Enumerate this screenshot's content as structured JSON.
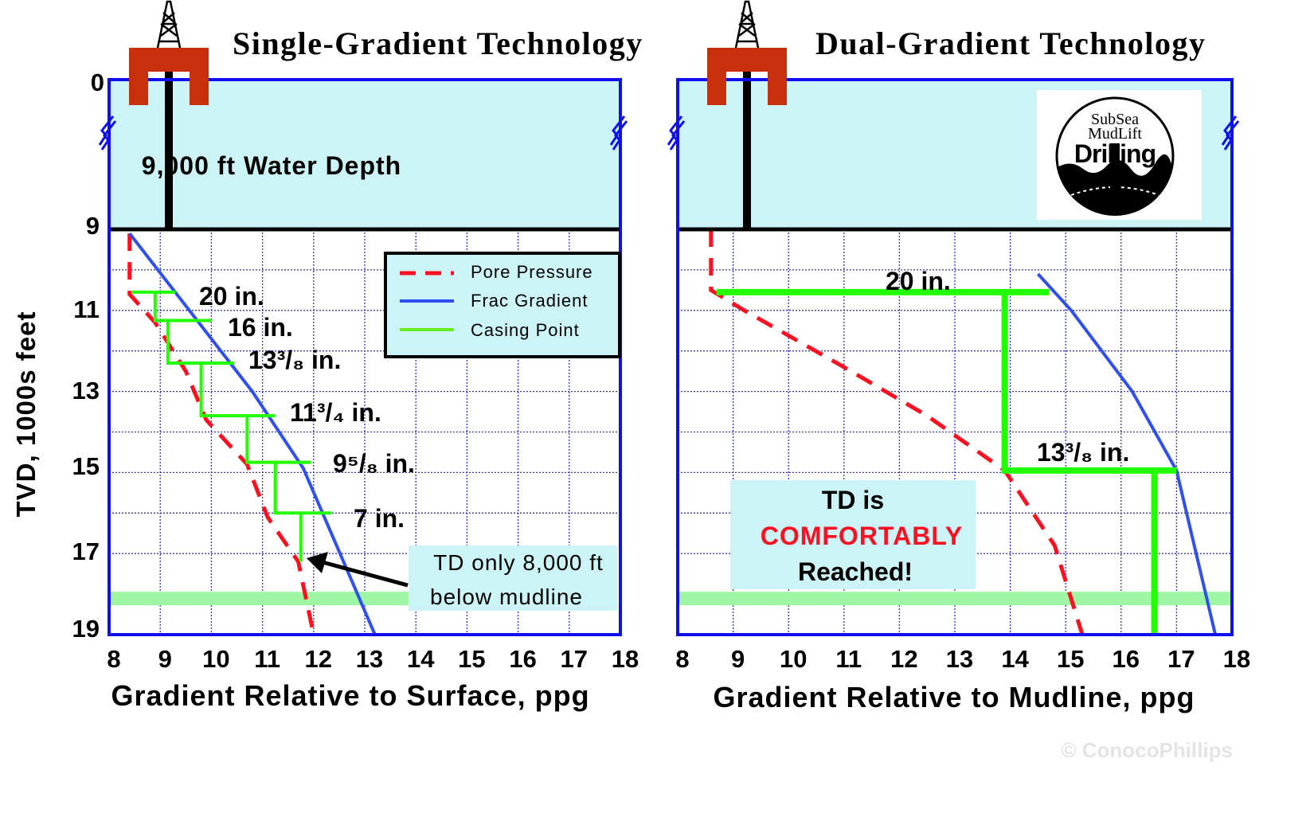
{
  "colors": {
    "water": "#ccf4f6",
    "frame": "#1010ee",
    "grid": "#3030ee",
    "pore": "#ff1020",
    "frac": "#2f4ff0",
    "casing": "#22ff00",
    "casing_legend": "#66ee22",
    "td_band": "#9ff7a4",
    "rig": "#c8300c",
    "comfort": "#ff1020"
  },
  "icons": {
    "rig": "offshore-rig-icon",
    "logo": "subsea-mudlift-drilling-logo",
    "axis_break": "axis-break-icon",
    "arrow": "arrow-icon"
  },
  "yaxis": {
    "label": "TVD, 1000s feet",
    "ticks": [
      "0",
      "9",
      "11",
      "13",
      "15",
      "17",
      "19"
    ]
  },
  "legend": {
    "items": [
      {
        "label": "Pore Pressure"
      },
      {
        "label": "Frac Gradient"
      },
      {
        "label": "Casing Point"
      }
    ]
  },
  "watermark": "© ConocoPhillips",
  "logo": {
    "text": [
      "SubSea",
      "MudLift",
      "Drilling"
    ]
  },
  "chart_data": [
    {
      "type": "line",
      "title": "Single-Gradient Technology",
      "xlabel": "Gradient  Relative to Surface, ppg",
      "ylabel": "TVD, 1000s feet",
      "xlim": [
        8,
        18
      ],
      "ylim": [
        19,
        0
      ],
      "y_axis_break": [
        0,
        9
      ],
      "xticks": [
        "8",
        "9",
        "10",
        "11",
        "12",
        "13",
        "14",
        "15",
        "16",
        "17",
        "18"
      ],
      "grid": true,
      "legend_position": "top-right",
      "water_label": "9,000 ft Water Depth",
      "water_depth": 9,
      "td_depth": 18.1,
      "series": [
        {
          "name": "Pore Pressure",
          "points": [
            [
              8.4,
              9.1
            ],
            [
              8.4,
              10.6
            ],
            [
              8.9,
              11.3
            ],
            [
              9.5,
              12.5
            ],
            [
              9.9,
              13.7
            ],
            [
              10.7,
              14.8
            ],
            [
              11.1,
              16.1
            ],
            [
              11.7,
              17.2
            ],
            [
              12.0,
              19.0
            ]
          ]
        },
        {
          "name": "Frac Gradient",
          "points": [
            [
              8.4,
              9.1
            ],
            [
              10.8,
              13.0
            ],
            [
              11.8,
              14.9
            ],
            [
              13.2,
              19.0
            ]
          ]
        },
        {
          "name": "Casing Point",
          "points": [
            [
              8.45,
              10.55
            ],
            [
              9.3,
              10.55
            ],
            [
              8.9,
              10.55
            ],
            [
              8.9,
              11.25
            ],
            [
              10.0,
              11.25
            ],
            [
              9.15,
              11.25
            ],
            [
              9.15,
              12.3
            ],
            [
              10.45,
              12.3
            ],
            [
              9.8,
              12.3
            ],
            [
              9.8,
              13.6
            ],
            [
              11.25,
              13.6
            ],
            [
              10.7,
              13.6
            ],
            [
              10.7,
              14.75
            ],
            [
              11.95,
              14.75
            ],
            [
              11.25,
              14.75
            ],
            [
              11.25,
              16.0
            ],
            [
              12.35,
              16.0
            ],
            [
              11.75,
              16.0
            ],
            [
              11.75,
              17.2
            ]
          ]
        }
      ],
      "annotations": [
        {
          "text": "20 in.",
          "depth": 10.55
        },
        {
          "text": "16 in.",
          "depth": 11.25
        },
        {
          "text": "13³/₈ in.",
          "depth": 12.3
        },
        {
          "text": "11³/₄ in.",
          "depth": 13.6
        },
        {
          "text": "9⁵/₈ in.",
          "depth": 14.75
        },
        {
          "text": "7 in.",
          "depth": 16.0
        }
      ],
      "callout": {
        "lines": [
          "TD only 8,000 ft",
          "below mudline"
        ]
      }
    },
    {
      "type": "line",
      "title": "Dual-Gradient Technology",
      "xlabel": "Gradient  Relative to Mudline, ppg",
      "ylabel": "TVD, 1000s feet",
      "xlim": [
        8,
        18
      ],
      "ylim": [
        19,
        0
      ],
      "y_axis_break": [
        0,
        9
      ],
      "xticks": [
        "8",
        "9",
        "10",
        "11",
        "12",
        "13",
        "14",
        "15",
        "16",
        "17",
        "18"
      ],
      "grid": true,
      "water_depth": 9,
      "td_depth": 18.1,
      "series": [
        {
          "name": "Pore Pressure",
          "points": [
            [
              8.6,
              9.0
            ],
            [
              8.6,
              10.5
            ],
            [
              9.2,
              11.0
            ],
            [
              11.0,
              12.4
            ],
            [
              12.5,
              13.6
            ],
            [
              13.9,
              14.95
            ],
            [
              14.8,
              16.8
            ],
            [
              15.3,
              19.0
            ]
          ]
        },
        {
          "name": "Frac Gradient",
          "points": [
            [
              14.5,
              10.1
            ],
            [
              15.1,
              11.0
            ],
            [
              16.2,
              13.0
            ],
            [
              17.0,
              14.95
            ],
            [
              17.7,
              19.0
            ]
          ]
        },
        {
          "name": "Casing Point",
          "points": [
            [
              8.7,
              10.55
            ],
            [
              14.7,
              10.55
            ],
            [
              13.9,
              10.55
            ],
            [
              13.9,
              14.95
            ],
            [
              17.0,
              14.95
            ],
            [
              16.6,
              14.95
            ],
            [
              16.6,
              19.0
            ]
          ]
        }
      ],
      "annotations": [
        {
          "text": "20 in.",
          "depth": 10.55
        },
        {
          "text": "13³/₈ in.",
          "depth": 14.95
        }
      ],
      "callout": {
        "lines": [
          "TD is",
          "COMFORTABLY",
          "Reached!"
        ]
      }
    }
  ]
}
